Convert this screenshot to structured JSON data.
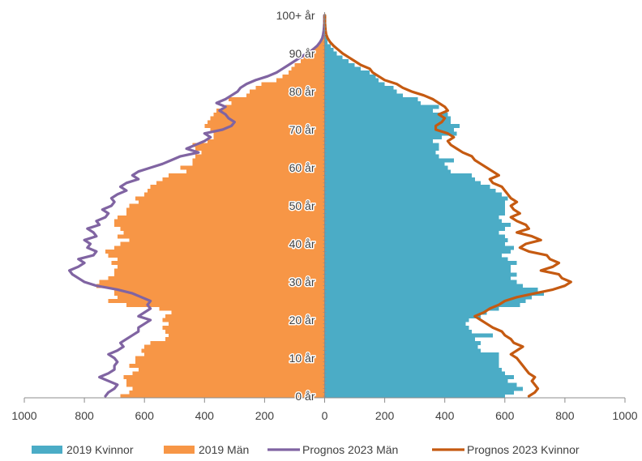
{
  "chart_data": {
    "type": "population-pyramid",
    "title": "",
    "xlim": [
      -1000,
      1000
    ],
    "x_ticks": [
      {
        "value": -1000,
        "label": "1000"
      },
      {
        "value": -800,
        "label": "800"
      },
      {
        "value": -600,
        "label": "600"
      },
      {
        "value": -400,
        "label": "400"
      },
      {
        "value": -200,
        "label": "200"
      },
      {
        "value": 0,
        "label": "0"
      },
      {
        "value": 200,
        "label": "200"
      },
      {
        "value": 400,
        "label": "400"
      },
      {
        "value": 600,
        "label": "600"
      },
      {
        "value": 800,
        "label": "800"
      },
      {
        "value": 1000,
        "label": "1000"
      }
    ],
    "age_ticks": [
      {
        "age": 0,
        "label": "0 år"
      },
      {
        "age": 10,
        "label": "10 år"
      },
      {
        "age": 20,
        "label": "20 år"
      },
      {
        "age": 30,
        "label": "30 år"
      },
      {
        "age": 40,
        "label": "40 år"
      },
      {
        "age": 50,
        "label": "50 år"
      },
      {
        "age": 60,
        "label": "60 år"
      },
      {
        "age": 70,
        "label": "70 år"
      },
      {
        "age": 80,
        "label": "80 år"
      },
      {
        "age": 90,
        "label": "90 år"
      },
      {
        "age": 100,
        "label": "100+ år"
      }
    ],
    "ages": [
      0,
      1,
      2,
      3,
      4,
      5,
      6,
      7,
      8,
      9,
      10,
      11,
      12,
      13,
      14,
      15,
      16,
      17,
      18,
      19,
      20,
      21,
      22,
      23,
      24,
      25,
      26,
      27,
      28,
      29,
      30,
      31,
      32,
      33,
      34,
      35,
      36,
      37,
      38,
      39,
      40,
      41,
      42,
      43,
      44,
      45,
      46,
      47,
      48,
      49,
      50,
      51,
      52,
      53,
      54,
      55,
      56,
      57,
      58,
      59,
      60,
      61,
      62,
      63,
      64,
      65,
      66,
      67,
      68,
      69,
      70,
      71,
      72,
      73,
      74,
      75,
      76,
      77,
      78,
      79,
      80,
      81,
      82,
      83,
      84,
      85,
      86,
      87,
      88,
      89,
      90,
      91,
      92,
      93,
      94,
      95,
      96,
      97,
      98,
      99,
      100
    ],
    "series": [
      {
        "name": "2019 Kvinnor",
        "kind": "bar",
        "color": "#4bacc6",
        "values": [
          600,
          630,
          660,
          640,
          610,
          630,
          600,
          590,
          580,
          580,
          580,
          580,
          520,
          510,
          520,
          500,
          560,
          490,
          480,
          470,
          480,
          520,
          540,
          580,
          650,
          670,
          690,
          730,
          710,
          660,
          640,
          620,
          640,
          620,
          620,
          640,
          610,
          590,
          620,
          630,
          600,
          610,
          600,
          580,
          600,
          620,
          590,
          580,
          600,
          600,
          600,
          600,
          610,
          590,
          570,
          550,
          520,
          500,
          490,
          420,
          410,
          400,
          430,
          380,
          370,
          380,
          380,
          360,
          390,
          440,
          430,
          450,
          420,
          420,
          410,
          360,
          380,
          320,
          310,
          260,
          240,
          230,
          200,
          180,
          170,
          150,
          120,
          100,
          80,
          60,
          40,
          30,
          20,
          10,
          8,
          5,
          4,
          3,
          2,
          1,
          1
        ]
      },
      {
        "name": "2019 Män",
        "kind": "bar",
        "color": "#f79646",
        "values": [
          -680,
          -650,
          -640,
          -660,
          -660,
          -670,
          -640,
          -620,
          -650,
          -630,
          -630,
          -600,
          -610,
          -600,
          -580,
          -530,
          -520,
          -530,
          -540,
          -520,
          -540,
          -530,
          -510,
          -550,
          -660,
          -720,
          -690,
          -700,
          -700,
          -760,
          -750,
          -720,
          -700,
          -700,
          -690,
          -710,
          -690,
          -720,
          -730,
          -700,
          -680,
          -650,
          -690,
          -670,
          -680,
          -700,
          -700,
          -690,
          -660,
          -660,
          -650,
          -620,
          -630,
          -600,
          -590,
          -580,
          -560,
          -540,
          -520,
          -460,
          -480,
          -440,
          -440,
          -430,
          -410,
          -430,
          -440,
          -390,
          -370,
          -370,
          -380,
          -400,
          -390,
          -380,
          -370,
          -360,
          -330,
          -310,
          -320,
          -260,
          -250,
          -230,
          -210,
          -160,
          -140,
          -120,
          -110,
          -100,
          -80,
          -70,
          -50,
          -40,
          -25,
          -15,
          -10,
          -8,
          -5,
          -3,
          -2,
          -1,
          -1
        ]
      },
      {
        "name": "Prognos 2023 Män",
        "kind": "line",
        "color": "#8064a2",
        "values": [
          -730,
          -720,
          -700,
          -690,
          -720,
          -750,
          -720,
          -700,
          -700,
          -690,
          -700,
          -720,
          -690,
          -670,
          -680,
          -660,
          -640,
          -620,
          -620,
          -600,
          -580,
          -620,
          -600,
          -580,
          -590,
          -580,
          -610,
          -640,
          -690,
          -760,
          -800,
          -820,
          -840,
          -850,
          -820,
          -800,
          -820,
          -770,
          -760,
          -790,
          -780,
          -800,
          -760,
          -770,
          -790,
          -750,
          -760,
          -730,
          -720,
          -740,
          -710,
          -700,
          -710,
          -690,
          -660,
          -680,
          -660,
          -620,
          -640,
          -620,
          -580,
          -540,
          -510,
          -480,
          -420,
          -460,
          -430,
          -400,
          -380,
          -400,
          -340,
          -310,
          -300,
          -320,
          -330,
          -350,
          -330,
          -360,
          -330,
          -310,
          -290,
          -280,
          -260,
          -230,
          -190,
          -160,
          -140,
          -120,
          -100,
          -80,
          -60,
          -40,
          -25,
          -15,
          -8,
          -5,
          -3,
          -2,
          -1,
          -1,
          -1
        ]
      },
      {
        "name": "Prognos 2023 Kvinnor",
        "kind": "line",
        "color": "#c55a11",
        "values": [
          680,
          700,
          710,
          700,
          690,
          700,
          680,
          670,
          660,
          650,
          640,
          620,
          640,
          660,
          630,
          620,
          600,
          590,
          560,
          540,
          520,
          500,
          530,
          550,
          580,
          600,
          640,
          700,
          760,
          800,
          820,
          790,
          780,
          720,
          760,
          780,
          750,
          740,
          680,
          650,
          670,
          720,
          690,
          640,
          680,
          670,
          640,
          620,
          650,
          630,
          620,
          640,
          620,
          610,
          600,
          590,
          560,
          550,
          580,
          560,
          540,
          520,
          500,
          490,
          460,
          440,
          420,
          410,
          430,
          410,
          370,
          370,
          390,
          400,
          380,
          410,
          400,
          380,
          360,
          330,
          290,
          260,
          240,
          200,
          180,
          160,
          150,
          120,
          100,
          80,
          60,
          45,
          30,
          18,
          10,
          5,
          3,
          2,
          1,
          1,
          1
        ]
      }
    ],
    "legend": {
      "position": "bottom",
      "entries": [
        "2019 Kvinnor",
        "2019 Män",
        "Prognos 2023 Män",
        "Prognos 2023 Kvinnor"
      ]
    },
    "grid": false
  }
}
